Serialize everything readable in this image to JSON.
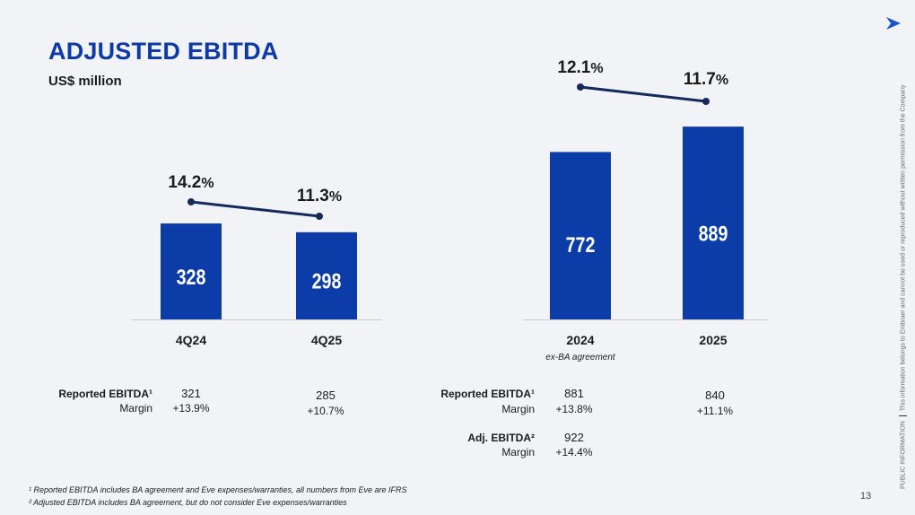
{
  "header": {
    "title": "ADJUSTED EBITDA",
    "subtitle": "US$ million"
  },
  "colors": {
    "bar": "#0b3ca8",
    "line": "#14295c",
    "title": "#0e3aa8"
  },
  "logo_icon": "arrow-logo-icon",
  "chart_data": [
    {
      "type": "bar",
      "categories": [
        "4Q24",
        "4Q25"
      ],
      "values": [
        328,
        298
      ],
      "value_labels": [
        "328",
        "298"
      ],
      "margin_line": {
        "values": [
          14.2,
          11.3
        ],
        "labels": [
          "14.2",
          "11.3"
        ],
        "unit": "%"
      }
    },
    {
      "type": "bar",
      "categories": [
        "2024",
        "2025"
      ],
      "category_note": "ex-BA agreement",
      "values": [
        772,
        889
      ],
      "value_labels": [
        "772",
        "889"
      ],
      "margin_line": {
        "values": [
          12.1,
          11.7
        ],
        "labels": [
          "12.1",
          "11.7"
        ],
        "unit": "%"
      }
    }
  ],
  "table_left": {
    "reported_label": "Reported EBITDA¹",
    "margin_label": "Margin",
    "col1": {
      "value": "321",
      "margin": "+13.9%"
    },
    "col2": {
      "value": "285",
      "margin": "+10.7%"
    }
  },
  "table_right": {
    "reported_label": "Reported EBITDA¹",
    "margin_label": "Margin",
    "col1": {
      "value": "881",
      "margin": "+13.8%"
    },
    "col2": {
      "value": "840",
      "margin": "+11.1%"
    },
    "adj_label": "Adj. EBITDA²",
    "adj_margin_label": "Margin",
    "adj": {
      "value": "922",
      "margin": "+14.4%"
    }
  },
  "footnotes": [
    "¹ Reported EBITDA includes BA agreement and Eve expenses/warranties, all numbers from Eve are IFRS",
    "² Adjusted EBITDA includes BA agreement, but do not consider Eve expenses/warranties"
  ],
  "page_number": "13",
  "side_note": {
    "public": "PUBLIC INFORMATION",
    "text": "This information belongs to Embraer and cannot be used or reproduced without written permission from the Company"
  }
}
